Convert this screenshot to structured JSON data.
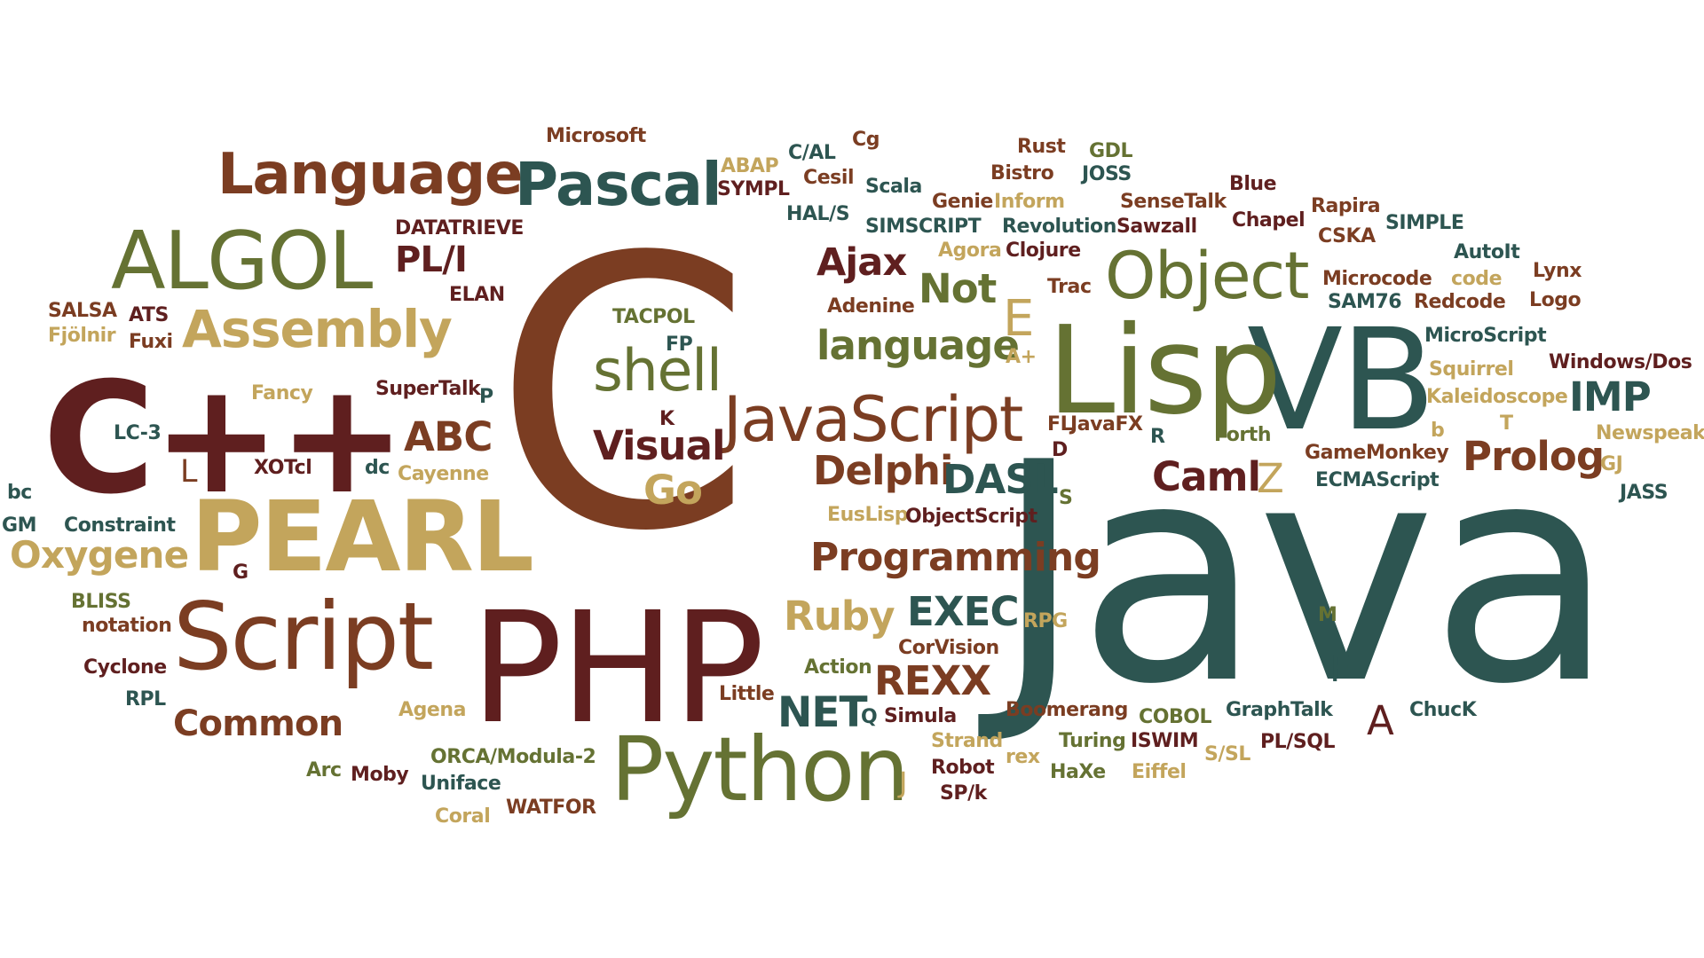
{
  "palette": {
    "dark_red": "#5f1f1f",
    "brown": "#7b3d22",
    "gold": "#c3a55c",
    "olive": "#657233",
    "teal": "#2d5551",
    "background": "#ffffff"
  },
  "words": [
    {
      "text": "Java",
      "color": "teal"
    },
    {
      "text": "C",
      "color": "brown"
    },
    {
      "text": "C++",
      "color": "dark_red"
    },
    {
      "text": "PHP",
      "color": "dark_red"
    },
    {
      "text": "VB",
      "color": "teal"
    },
    {
      "text": "Lisp",
      "color": "olive"
    },
    {
      "text": "PEARL",
      "color": "gold"
    },
    {
      "text": "Script",
      "color": "brown"
    },
    {
      "text": "Python",
      "color": "olive"
    },
    {
      "text": "ALGOL",
      "color": "olive"
    },
    {
      "text": "JavaScript",
      "color": "brown"
    },
    {
      "text": "Object",
      "color": "olive"
    },
    {
      "text": "Language",
      "color": "brown"
    },
    {
      "text": "Pascal",
      "color": "teal"
    },
    {
      "text": "Assembly",
      "color": "gold"
    },
    {
      "text": "shell",
      "color": "olive"
    },
    {
      "text": "Oxygene",
      "color": "gold"
    },
    {
      "text": "Programming",
      "color": "brown"
    },
    {
      "text": "Common",
      "color": "brown"
    },
    {
      "text": "Prolog",
      "color": "brown"
    },
    {
      "text": "REXX",
      "color": "brown"
    },
    {
      "text": "Ruby",
      "color": "gold"
    },
    {
      "text": "NET",
      "color": "teal"
    },
    {
      "text": "EXEC",
      "color": "teal"
    },
    {
      "text": "Visual",
      "color": "dark_red"
    },
    {
      "text": "Delphi",
      "color": "brown"
    },
    {
      "text": "DASL",
      "color": "teal"
    },
    {
      "text": "language",
      "color": "olive"
    },
    {
      "text": "Caml",
      "color": "dark_red"
    },
    {
      "text": "Not",
      "color": "olive"
    },
    {
      "text": "IMP",
      "color": "teal"
    },
    {
      "text": "ABC",
      "color": "brown"
    },
    {
      "text": "Ajax",
      "color": "dark_red"
    },
    {
      "text": "PL/I",
      "color": "dark_red"
    },
    {
      "text": "Go",
      "color": "gold"
    },
    {
      "text": "E",
      "color": "gold"
    },
    {
      "text": "A",
      "color": "dark_red"
    },
    {
      "text": "Z",
      "color": "gold"
    },
    {
      "text": "F",
      "color": "teal"
    },
    {
      "text": "L",
      "color": "brown"
    },
    {
      "text": "J",
      "color": "gold"
    },
    {
      "text": "Microsoft",
      "color": "brown"
    },
    {
      "text": "ABAP",
      "color": "gold"
    },
    {
      "text": "SYMPL",
      "color": "dark_red"
    },
    {
      "text": "C/AL",
      "color": "teal"
    },
    {
      "text": "Cg",
      "color": "brown"
    },
    {
      "text": "Cesil",
      "color": "brown"
    },
    {
      "text": "HAL/S",
      "color": "teal"
    },
    {
      "text": "Scala",
      "color": "teal"
    },
    {
      "text": "Rust",
      "color": "brown"
    },
    {
      "text": "Bistro",
      "color": "brown"
    },
    {
      "text": "Genie",
      "color": "brown"
    },
    {
      "text": "Inform",
      "color": "gold"
    },
    {
      "text": "GDL",
      "color": "olive"
    },
    {
      "text": "JOSS",
      "color": "teal"
    },
    {
      "text": "Blue",
      "color": "dark_red"
    },
    {
      "text": "SenseTalk",
      "color": "brown"
    },
    {
      "text": "Rapira",
      "color": "brown"
    },
    {
      "text": "SIMPLE",
      "color": "teal"
    },
    {
      "text": "SIMSCRIPT",
      "color": "teal"
    },
    {
      "text": "Revolution",
      "color": "teal"
    },
    {
      "text": "Sawzall",
      "color": "dark_red"
    },
    {
      "text": "Chapel",
      "color": "dark_red"
    },
    {
      "text": "CSKA",
      "color": "brown"
    },
    {
      "text": "Agora",
      "color": "gold"
    },
    {
      "text": "Clojure",
      "color": "dark_red"
    },
    {
      "text": "Trac",
      "color": "brown"
    },
    {
      "text": "Microcode",
      "color": "brown"
    },
    {
      "text": "code",
      "color": "gold"
    },
    {
      "text": "Lynx",
      "color": "brown"
    },
    {
      "text": "AutoIt",
      "color": "teal"
    },
    {
      "text": "SAM76",
      "color": "teal"
    },
    {
      "text": "Redcode",
      "color": "brown"
    },
    {
      "text": "Logo",
      "color": "brown"
    },
    {
      "text": "MicroScript",
      "color": "teal"
    },
    {
      "text": "Squirrel",
      "color": "gold"
    },
    {
      "text": "Windows/Dos",
      "color": "dark_red"
    },
    {
      "text": "Kaleidoscope",
      "color": "gold"
    },
    {
      "text": "T",
      "color": "gold"
    },
    {
      "text": "Newspeak",
      "color": "gold"
    },
    {
      "text": "b",
      "color": "gold"
    },
    {
      "text": "GameMonkey",
      "color": "brown"
    },
    {
      "text": "GJ",
      "color": "gold"
    },
    {
      "text": "ECMAScript",
      "color": "teal"
    },
    {
      "text": "JASS",
      "color": "teal"
    },
    {
      "text": "DATATRIEVE",
      "color": "dark_red"
    },
    {
      "text": "ELAN",
      "color": "dark_red"
    },
    {
      "text": "SALSA",
      "color": "brown"
    },
    {
      "text": "ATS",
      "color": "dark_red"
    },
    {
      "text": "Fjölnir",
      "color": "gold"
    },
    {
      "text": "Fuxi",
      "color": "brown"
    },
    {
      "text": "TACPOL",
      "color": "olive"
    },
    {
      "text": "FP",
      "color": "teal"
    },
    {
      "text": "Adenine",
      "color": "brown"
    },
    {
      "text": "A+",
      "color": "gold"
    },
    {
      "text": "Fancy",
      "color": "gold"
    },
    {
      "text": "SuperTalk",
      "color": "dark_red"
    },
    {
      "text": "P",
      "color": "teal"
    },
    {
      "text": "K",
      "color": "dark_red"
    },
    {
      "text": "LC-3",
      "color": "teal"
    },
    {
      "text": "XOTcl",
      "color": "dark_red"
    },
    {
      "text": "dc",
      "color": "teal"
    },
    {
      "text": "Cayenne",
      "color": "gold"
    },
    {
      "text": "bc",
      "color": "teal"
    },
    {
      "text": "GM",
      "color": "teal"
    },
    {
      "text": "Constraint",
      "color": "teal"
    },
    {
      "text": "FL",
      "color": "brown"
    },
    {
      "text": "JavaFX",
      "color": "brown"
    },
    {
      "text": "R",
      "color": "teal"
    },
    {
      "text": "Forth",
      "color": "olive"
    },
    {
      "text": "D",
      "color": "dark_red"
    },
    {
      "text": "S",
      "color": "olive"
    },
    {
      "text": "EusLisp",
      "color": "gold"
    },
    {
      "text": "ObjectScript",
      "color": "dark_red"
    },
    {
      "text": "G",
      "color": "dark_red"
    },
    {
      "text": "BLISS",
      "color": "olive"
    },
    {
      "text": "notation",
      "color": "brown"
    },
    {
      "text": "Cyclone",
      "color": "dark_red"
    },
    {
      "text": "RPL",
      "color": "teal"
    },
    {
      "text": "Agena",
      "color": "gold"
    },
    {
      "text": "RPG",
      "color": "gold"
    },
    {
      "text": "CorVision",
      "color": "brown"
    },
    {
      "text": "Action",
      "color": "olive"
    },
    {
      "text": "Little",
      "color": "brown"
    },
    {
      "text": "M",
      "color": "olive"
    },
    {
      "text": "Q",
      "color": "teal"
    },
    {
      "text": "Simula",
      "color": "dark_red"
    },
    {
      "text": "Boomerang",
      "color": "brown"
    },
    {
      "text": "COBOL",
      "color": "olive"
    },
    {
      "text": "GraphTalk",
      "color": "teal"
    },
    {
      "text": "ChucK",
      "color": "teal"
    },
    {
      "text": "Strand",
      "color": "gold"
    },
    {
      "text": "Turing",
      "color": "olive"
    },
    {
      "text": "ISWIM",
      "color": "dark_red"
    },
    {
      "text": "S/SL",
      "color": "gold"
    },
    {
      "text": "PL/SQL",
      "color": "dark_red"
    },
    {
      "text": "Arc",
      "color": "olive"
    },
    {
      "text": "Moby",
      "color": "dark_red"
    },
    {
      "text": "ORCA/Modula-2",
      "color": "olive"
    },
    {
      "text": "Uniface",
      "color": "teal"
    },
    {
      "text": "Robot",
      "color": "dark_red"
    },
    {
      "text": "rex",
      "color": "gold"
    },
    {
      "text": "HaXe",
      "color": "olive"
    },
    {
      "text": "Eiffel",
      "color": "gold"
    },
    {
      "text": "SP/k",
      "color": "dark_red"
    },
    {
      "text": "WATFOR",
      "color": "brown"
    },
    {
      "text": "Coral",
      "color": "gold"
    }
  ]
}
